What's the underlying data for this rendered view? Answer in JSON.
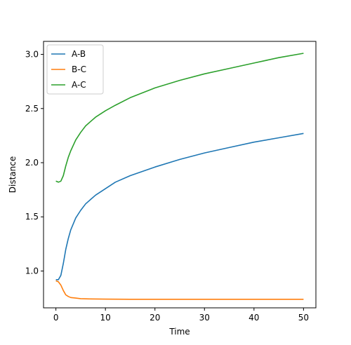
{
  "chart_data": {
    "type": "line",
    "title": "",
    "xlabel": "Time",
    "ylabel": "Distance",
    "xlim": [
      -2.5,
      52.5
    ],
    "ylim": [
      0.66,
      3.12
    ],
    "xticks": [
      0,
      10,
      20,
      30,
      40,
      50
    ],
    "xtick_labels": [
      "0",
      "10",
      "20",
      "30",
      "40",
      "50"
    ],
    "yticks": [
      1.0,
      1.5,
      2.0,
      2.5,
      3.0
    ],
    "ytick_labels": [
      "1.0",
      "1.5",
      "2.0",
      "2.5",
      "3.0"
    ],
    "grid": false,
    "legend_position": "top-left",
    "series": [
      {
        "name": "A-B",
        "color": "#1f77b4",
        "x": [
          0,
          0.5,
          1,
          1.5,
          2,
          2.5,
          3,
          4,
          5,
          6,
          7,
          8,
          10,
          12,
          15,
          20,
          25,
          30,
          35,
          40,
          45,
          50
        ],
        "y": [
          0.92,
          0.92,
          0.96,
          1.07,
          1.2,
          1.3,
          1.38,
          1.49,
          1.56,
          1.62,
          1.66,
          1.7,
          1.76,
          1.82,
          1.88,
          1.96,
          2.03,
          2.09,
          2.14,
          2.19,
          2.23,
          2.27
        ]
      },
      {
        "name": "B-C",
        "color": "#ff7f0e",
        "x": [
          0,
          0.5,
          1,
          1.5,
          2,
          2.5,
          3,
          4,
          5,
          7,
          10,
          15,
          20,
          30,
          40,
          50
        ],
        "y": [
          0.91,
          0.9,
          0.87,
          0.82,
          0.78,
          0.765,
          0.755,
          0.75,
          0.745,
          0.742,
          0.74,
          0.739,
          0.739,
          0.739,
          0.739,
          0.739
        ]
      },
      {
        "name": "A-C",
        "color": "#2ca02c",
        "x": [
          0,
          0.5,
          1,
          1.5,
          2,
          2.5,
          3,
          4,
          5,
          6,
          7,
          8,
          10,
          12,
          15,
          20,
          25,
          30,
          35,
          40,
          45,
          50
        ],
        "y": [
          1.83,
          1.82,
          1.83,
          1.88,
          1.97,
          2.05,
          2.11,
          2.21,
          2.28,
          2.34,
          2.38,
          2.42,
          2.48,
          2.53,
          2.6,
          2.69,
          2.76,
          2.82,
          2.87,
          2.92,
          2.97,
          3.01
        ]
      }
    ]
  }
}
